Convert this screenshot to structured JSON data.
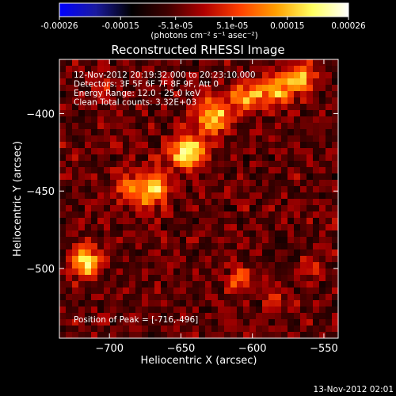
{
  "colorbar": {
    "ticks": [
      "-0.00026",
      "-0.00015",
      "-5.1e-05",
      "5.1e-05",
      "0.00015",
      "0.00026"
    ],
    "range": [
      -0.00026,
      0.00026
    ],
    "unit_label": "(photons cm⁻² s⁻¹ asec⁻²)",
    "colormap": [
      "#0000ff",
      "#1a1aa0",
      "#000000",
      "#400000",
      "#b00000",
      "#ff4000",
      "#ffa000",
      "#ffff60",
      "#ffffff"
    ]
  },
  "chart_data": {
    "type": "heatmap",
    "title": "Reconstructed RHESSI Image",
    "xlabel": "Heliocentric X (arcsec)",
    "ylabel": "Heliocentric Y (arcsec)",
    "xlim": [
      -735,
      -540
    ],
    "ylim": [
      -545,
      -365
    ],
    "xticks": [
      -700,
      -650,
      -600,
      -550
    ],
    "yticks": [
      -400,
      -450,
      -500
    ],
    "info_lines": [
      "12-Nov-2012 20:19:32.000 to 20:23:10.000",
      "Detectors: 3F 5F 6F 7F 8F 9F, Att 0",
      "Energy Range: 12.0 - 25.0 keV",
      "Clean     Total counts: 3.32E+03"
    ],
    "peak_label": "Position of Peak = [-716,-496]",
    "peak": [
      -716,
      -496
    ],
    "sources": [
      {
        "x": -716,
        "y": -496,
        "amp": 0.00026,
        "sx": 7,
        "sy": 7
      },
      {
        "x": -670,
        "y": -448,
        "amp": 0.00024,
        "sx": 8,
        "sy": 8
      },
      {
        "x": -645,
        "y": -425,
        "amp": 0.00022,
        "sx": 9,
        "sy": 8
      },
      {
        "x": -628,
        "y": -402,
        "amp": 0.00023,
        "sx": 8,
        "sy": 8
      },
      {
        "x": -605,
        "y": -390,
        "amp": 0.00018,
        "sx": 7,
        "sy": 7
      },
      {
        "x": -585,
        "y": -385,
        "amp": 0.0002,
        "sx": 8,
        "sy": 7
      },
      {
        "x": -567,
        "y": -378,
        "amp": 0.00019,
        "sx": 7,
        "sy": 7
      },
      {
        "x": -690,
        "y": -448,
        "amp": 0.00012,
        "sx": 6,
        "sy": 6
      },
      {
        "x": -610,
        "y": -507,
        "amp": 0.00012,
        "sx": 6,
        "sy": 6
      },
      {
        "x": -585,
        "y": -520,
        "amp": 0.0001,
        "sx": 5,
        "sy": 5
      },
      {
        "x": -560,
        "y": -500,
        "amp": 8e-05,
        "sx": 5,
        "sy": 5
      },
      {
        "x": -705,
        "y": -380,
        "amp": 6e-05,
        "sx": 6,
        "sy": 6
      }
    ],
    "noise_floor": -5e-05
  },
  "footer": {
    "timestamp": "13-Nov-2012 02:01"
  }
}
